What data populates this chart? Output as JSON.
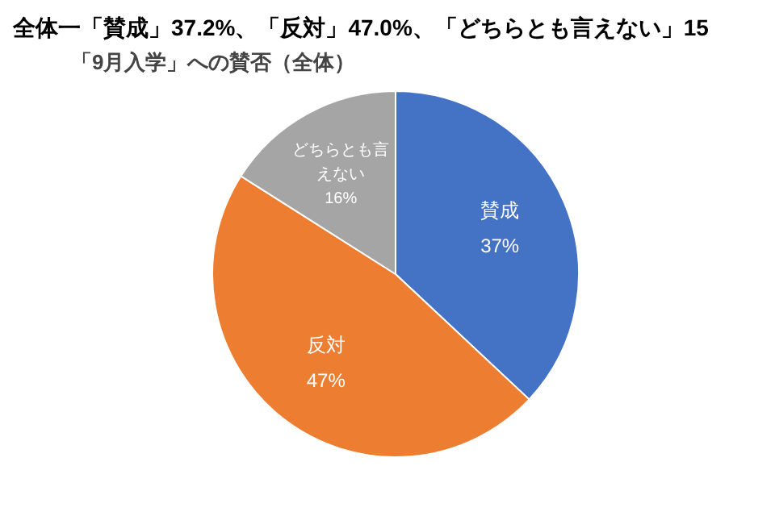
{
  "chart_data": {
    "type": "pie",
    "title": "全体一「賛成」37.2%、「反対」47.0%、「どちらとも言えない」15",
    "subtitle": "「9月入学」への賛否（全体）",
    "categories": [
      "賛成",
      "反対",
      "どちらとも言えない"
    ],
    "values": [
      37,
      47,
      16
    ],
    "colors": [
      "#4472c4",
      "#ed7d31",
      "#a5a5a5"
    ],
    "value_labels": [
      "37%",
      "47%",
      "16%"
    ],
    "legend": false
  }
}
